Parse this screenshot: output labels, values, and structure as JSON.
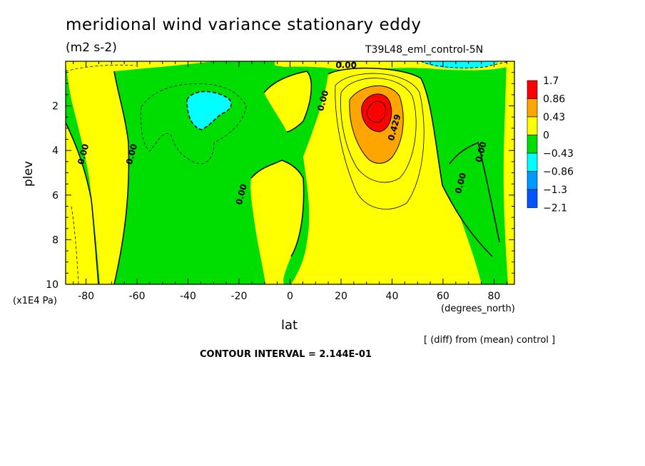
{
  "chart_data": {
    "type": "heatmap",
    "title": "meridional wind variance  stationary eddy",
    "units": "(m2 s-2)",
    "run_label": "T39L48_eml_control-5N",
    "xlabel": "lat",
    "xunits": "(degrees_north)",
    "ylabel": "plev",
    "yunits": "(x1E4 Pa)",
    "xlim": [
      -88,
      88
    ],
    "ylim": [
      0,
      10
    ],
    "y_inverted": true,
    "x_ticks": [
      "-80",
      "-60",
      "-40",
      "-20",
      "0",
      "20",
      "40",
      "60",
      "80"
    ],
    "y_ticks": [
      "2",
      "4",
      "6",
      "8",
      "10"
    ],
    "legend": {
      "placement": "right",
      "labels": [
        "1.7",
        "0.86",
        "0.43",
        "0",
        "−0.43",
        "−0.86",
        "−1.3",
        "−2.1"
      ],
      "colors": [
        "#ff0000",
        "#ffa500",
        "#ffff00",
        "#00dd00",
        "#00ffff",
        "#0099ff",
        "#0055ff"
      ]
    },
    "contour_labels": [
      {
        "text": "0.00",
        "lat": -80,
        "p": 4.2
      },
      {
        "text": "0.00",
        "lat": -61,
        "p": 4.2
      },
      {
        "text": "0.00",
        "lat": -18,
        "p": 6.0
      },
      {
        "text": "0.00",
        "lat": 14,
        "p": 1.8
      },
      {
        "text": "0.00",
        "lat": 22,
        "p": 0.3
      },
      {
        "text": "0.429",
        "lat": 42,
        "p": 3.0
      },
      {
        "text": "0.00",
        "lat": 68,
        "p": 5.5
      },
      {
        "text": "0.00",
        "lat": 76,
        "p": 4.1
      }
    ],
    "contour_interval_text": "CONTOUR INTERVAL = 2.144E-01",
    "note": "[ (diff) from (mean) control ]"
  }
}
